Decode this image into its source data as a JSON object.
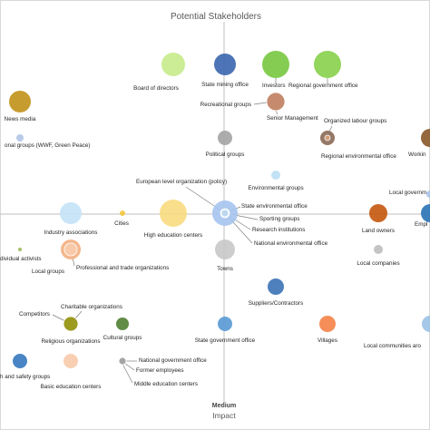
{
  "chart_data": {
    "type": "scatter",
    "title": "Potential Stakeholders",
    "xlabel": "Impact",
    "x_tick": "Medium",
    "grid": false,
    "points": [
      {
        "label": "Board of directors",
        "color": "#c8eb8c",
        "size": 13
      },
      {
        "label": "State mining office",
        "color": "#3e68b0",
        "size": 12
      },
      {
        "label": "Investors",
        "color": "#7ac943",
        "size": 15
      },
      {
        "label": "Regional government office",
        "color": "#8ad14f",
        "size": 15
      },
      {
        "label": "News media",
        "color": "#c2941c",
        "size": 12
      },
      {
        "label": "Recreational groups",
        "color": "#c58a6e",
        "size": 10
      },
      {
        "label": "Senior Management",
        "color": "#c58a6e",
        "size": 10
      },
      {
        "label": "Organized labour groups",
        "color": "#d9a37a",
        "size": 3
      },
      {
        "label": "onal groups (WWF, Green Peace)",
        "color": "#b4c7e7",
        "size": 4
      },
      {
        "label": "Political groups",
        "color": "#a5a5a5",
        "size": 8
      },
      {
        "label": "Regional environmental office",
        "color": "#8c6d5a",
        "size": 8
      },
      {
        "label": "Workin",
        "color": "#8b5a2b",
        "size": 10
      },
      {
        "label": "European level organization (policy)",
        "color": "#c7dcf0",
        "size": 5
      },
      {
        "label": "Environmental groups",
        "color": "#bde0f5",
        "size": 5
      },
      {
        "label": "Local governm",
        "color": "#a9c4e8",
        "size": 4
      },
      {
        "label": "Industry associations",
        "color": "#c5e3f7",
        "size": 12
      },
      {
        "label": "Cities",
        "color": "#f2c744",
        "size": 3
      },
      {
        "label": "High education centers",
        "color": "#f9dc82",
        "size": 15
      },
      {
        "label": "State environmental office",
        "color": "#a8c6f0",
        "size": 14
      },
      {
        "label": "Sporting groups",
        "color": "#a8c6f0",
        "size": 4
      },
      {
        "label": "Research institutions",
        "color": "#a8c6f0",
        "size": 4
      },
      {
        "label": "National environmental office",
        "color": "#bdd7ee",
        "size": 4
      },
      {
        "label": "Land owners",
        "color": "#c55a11",
        "size": 10
      },
      {
        "label": "Empl",
        "color": "#2e75b6",
        "size": 10
      },
      {
        "label": "dividual activists",
        "color": "#9bbb59",
        "size": 2
      },
      {
        "label": "Local groups",
        "color": "#f4b183",
        "size": 11
      },
      {
        "label": "Professional and trade organizations",
        "color": "#f8cbad",
        "size": 7
      },
      {
        "label": "Towns",
        "color": "#c9c9c9",
        "size": 11
      },
      {
        "label": "Local companies",
        "color": "#bfbfbf",
        "size": 5
      },
      {
        "label": "Suppliers/Contractors",
        "color": "#3f75b8",
        "size": 9
      },
      {
        "label": "Charitable organizations",
        "color": "#9c9a1f",
        "size": 8
      },
      {
        "label": "Competitors",
        "color": "#9c9a1f",
        "size": 8
      },
      {
        "label": "Religious organizations",
        "color": "#9c9a1f",
        "size": 8
      },
      {
        "label": "Cultural groups",
        "color": "#548235",
        "size": 7
      },
      {
        "label": "State government office",
        "color": "#5b9bd5",
        "size": 8
      },
      {
        "label": "Villages",
        "color": "#f4844b",
        "size": 9
      },
      {
        "label": "Local communities aro",
        "color": "#9dc3e6",
        "size": 9
      },
      {
        "label": "h and safety groups",
        "color": "#3a7bbf",
        "size": 8
      },
      {
        "label": "Basic education centers",
        "color": "#f8cbad",
        "size": 8
      },
      {
        "label": "National government office",
        "color": "#a5a5a5",
        "size": 4
      },
      {
        "label": "Former employees",
        "color": "#a5a5a5",
        "size": 4
      },
      {
        "label": "Middle education centers",
        "color": "#a5a5a5",
        "size": 4
      }
    ]
  }
}
